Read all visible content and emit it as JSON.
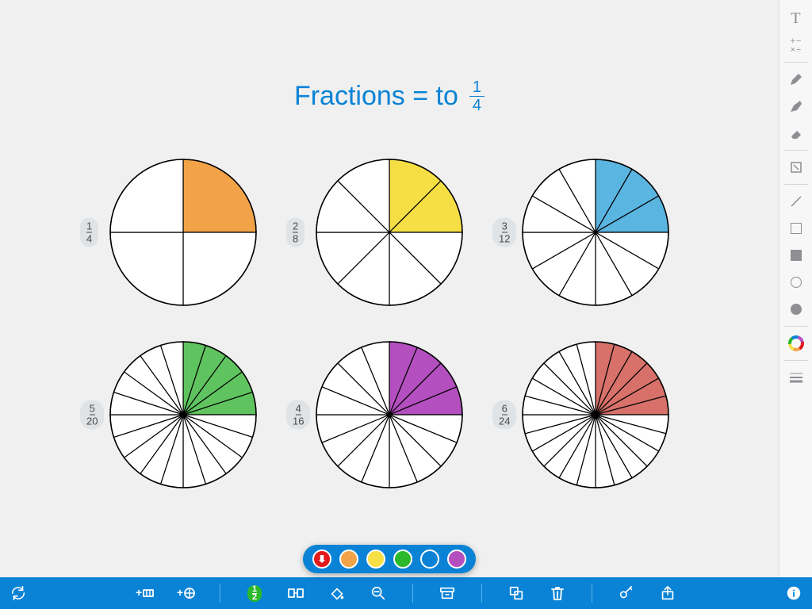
{
  "colors": {
    "accent": "#0a83d6",
    "canvas_bg": "#f0f0f0",
    "sidebar_bg": "#f7f7f8",
    "sidebar_icon": "#8e8e93",
    "tag_bg": "#dfe3e6",
    "tag_fg": "#4a4a4a",
    "pie_stroke": "#000000"
  },
  "title": {
    "text": "Fractions = to",
    "fraction": {
      "numerator": "1",
      "denominator": "4"
    },
    "color": "#0a83d6",
    "fontsize": 34
  },
  "pie_style": {
    "radius": 92,
    "stroke_width": 1.2
  },
  "pies": [
    {
      "numerator": 1,
      "denominator": 4,
      "shaded": 1,
      "fill": "#f2a348"
    },
    {
      "numerator": 2,
      "denominator": 8,
      "shaded": 2,
      "fill": "#f5df45"
    },
    {
      "numerator": 3,
      "denominator": 12,
      "shaded": 3,
      "fill": "#5ab5e1"
    },
    {
      "numerator": 5,
      "denominator": 20,
      "shaded": 5,
      "fill": "#5fc45f"
    },
    {
      "numerator": 4,
      "denominator": 16,
      "shaded": 4,
      "fill": "#b44fc0"
    },
    {
      "numerator": 6,
      "denominator": 24,
      "shaded": 6,
      "fill": "#d77169"
    }
  ],
  "color_popup": {
    "colors": [
      "#e11b1b",
      "#f2a348",
      "#f5df45",
      "#2bb82b",
      "#0a83d6",
      "#b44fc0"
    ],
    "selected_index": 0
  },
  "right_toolbar": [
    {
      "id": "text-tool",
      "kind": "glyph",
      "glyph": "T"
    },
    {
      "id": "math-tool",
      "kind": "math"
    },
    {
      "id": "sep"
    },
    {
      "id": "pencil-tool",
      "kind": "pencil"
    },
    {
      "id": "marker-tool",
      "kind": "marker"
    },
    {
      "id": "eraser-tool",
      "kind": "eraser"
    },
    {
      "id": "sep"
    },
    {
      "id": "crop-tool",
      "kind": "crop"
    },
    {
      "id": "sep"
    },
    {
      "id": "line-tool",
      "kind": "line"
    },
    {
      "id": "rect-outline",
      "kind": "rect-outline"
    },
    {
      "id": "rect-filled",
      "kind": "rect-filled"
    },
    {
      "id": "circle-outline",
      "kind": "circle-outline"
    },
    {
      "id": "circle-filled",
      "kind": "circle-filled"
    },
    {
      "id": "sep"
    },
    {
      "id": "color-picker",
      "kind": "colorwheel"
    },
    {
      "id": "sep"
    },
    {
      "id": "stroke-weight",
      "kind": "weights"
    }
  ],
  "bottom_toolbar": {
    "left": [
      {
        "id": "refresh"
      }
    ],
    "center": [
      {
        "id": "add-bar"
      },
      {
        "id": "add-circle"
      },
      "sep",
      {
        "id": "tag-label",
        "highlight": true
      },
      {
        "id": "split"
      },
      {
        "id": "fill-tool"
      },
      {
        "id": "zoom-out"
      },
      "sep",
      {
        "id": "archive"
      },
      "sep",
      {
        "id": "duplicate"
      },
      {
        "id": "trash"
      },
      "sep",
      {
        "id": "key"
      },
      {
        "id": "share"
      }
    ],
    "right": [
      {
        "id": "info"
      }
    ]
  }
}
